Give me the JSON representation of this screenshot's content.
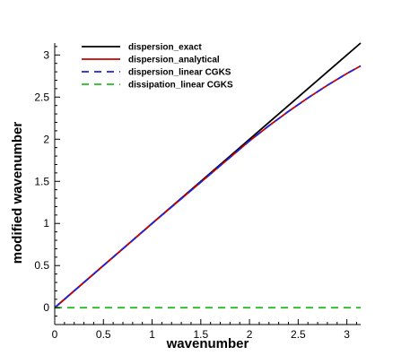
{
  "chart_data": {
    "type": "line",
    "xlabel": "wavenumber",
    "ylabel": "modified wavenumber",
    "xlim": [
      0,
      3.14159
    ],
    "ylim": [
      -0.2,
      3.14159
    ],
    "xticks": [
      0,
      0.5,
      1,
      1.5,
      2,
      2.5,
      3
    ],
    "yticks": [
      0,
      0.5,
      1,
      1.5,
      2,
      2.5,
      3
    ],
    "xtick_labels": [
      "0",
      "0.5",
      "1",
      "1.5",
      "2",
      "2.5",
      "3"
    ],
    "ytick_labels": [
      "0",
      "0.5",
      "1",
      "1.5",
      "2",
      "2.5",
      "3"
    ],
    "legend_position": "top-left",
    "grid": false,
    "series": [
      {
        "name": "dispersion_exact",
        "color": "#000000",
        "dash": "solid",
        "x": [
          0,
          0.5,
          1.0,
          1.5,
          2.0,
          2.5,
          3.14159
        ],
        "y": [
          0,
          0.5,
          1.0,
          1.5,
          2.0,
          2.5,
          3.14159
        ]
      },
      {
        "name": "dispersion_analytical",
        "color": "#cc0000",
        "dash": "solid",
        "x": [
          0,
          0.5,
          1.0,
          1.5,
          2.0,
          2.2,
          2.4,
          2.6,
          2.8,
          3.0,
          3.14159
        ],
        "y": [
          0,
          0.5,
          1.0,
          1.49,
          1.98,
          2.16,
          2.33,
          2.49,
          2.64,
          2.78,
          2.87
        ]
      },
      {
        "name": "dispersion_linear CGKS",
        "color": "#2222dd",
        "dash": "dashed",
        "x": [
          0,
          0.5,
          1.0,
          1.5,
          2.0,
          2.2,
          2.4,
          2.6,
          2.8,
          3.0,
          3.14159
        ],
        "y": [
          0,
          0.5,
          1.0,
          1.49,
          1.98,
          2.16,
          2.33,
          2.49,
          2.64,
          2.78,
          2.87
        ]
      },
      {
        "name": "dissipation_linear CGKS",
        "color": "#22bb22",
        "dash": "dashed",
        "x": [
          0,
          3.14159
        ],
        "y": [
          0,
          0
        ]
      }
    ]
  }
}
